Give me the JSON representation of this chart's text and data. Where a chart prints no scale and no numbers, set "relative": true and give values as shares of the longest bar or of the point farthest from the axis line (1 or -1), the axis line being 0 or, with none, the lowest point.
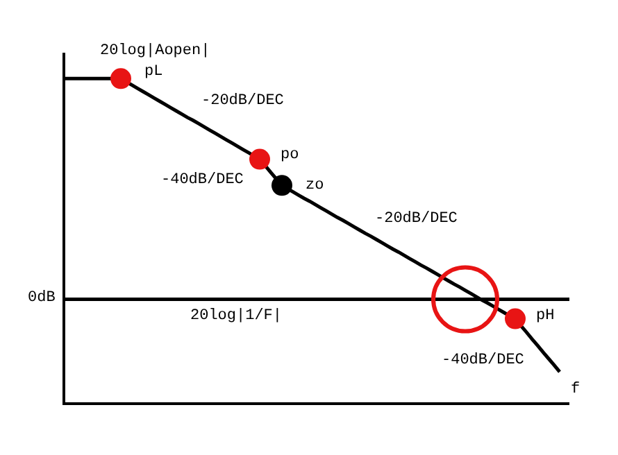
{
  "chart_data": {
    "type": "line",
    "relative": true,
    "xlabel": "f",
    "ylabel": "20log|Aopen|",
    "categories": [
      null,
      null,
      null,
      null,
      null,
      null,
      null,
      null,
      null,
      null,
      null,
      null,
      null,
      null,
      null,
      null,
      null,
      null,
      null,
      null,
      null,
      null,
      null,
      null,
      null,
      null,
      null,
      null,
      null,
      null,
      null,
      null,
      null,
      null,
      null,
      null,
      null,
      null,
      null,
      null,
      null,
      null,
      null,
      null,
      null,
      null,
      null,
      null,
      null,
      null,
      null,
      null,
      null,
      null,
      null,
      null,
      null,
      null,
      null,
      null,
      null,
      null,
      null,
      null,
      null,
      null,
      null,
      null,
      null,
      null,
      null,
      null,
      null,
      null,
      null,
      null,
      null,
      null,
      null,
      null,
      null,
      null,
      null,
      null,
      null,
      null,
      null,
      null,
      null,
      null
    ],
    "series": [
      {
        "color": "#000000",
        "values": [
          1.0,
          1.0,
          1.0,
          1.0,
          1.0,
          1.0,
          1.0,
          1.0,
          1.0,
          1.0,
          1.0,
          0.99,
          0.98,
          0.97,
          0.96,
          0.95,
          0.94,
          0.93,
          0.92,
          0.91,
          0.9,
          0.89,
          0.88,
          0.871,
          0.861,
          0.851,
          0.841,
          0.831,
          0.821,
          0.811,
          0.801,
          0.791,
          0.781,
          0.771,
          0.761,
          0.751,
          0.731,
          0.71,
          0.69,
          0.67,
          0.66,
          0.65,
          0.64,
          0.63,
          0.621,
          0.611,
          0.601,
          0.591,
          0.581,
          0.571,
          0.562,
          0.552,
          0.542,
          0.532,
          0.522,
          0.513,
          0.503,
          0.493,
          0.483,
          0.473,
          0.464,
          0.454,
          0.444,
          0.434,
          0.424,
          0.415,
          0.405,
          0.395,
          0.385,
          0.375,
          0.365,
          0.356,
          0.346,
          0.336,
          0.326,
          0.316,
          0.307,
          0.297,
          0.287,
          0.277,
          0.267,
          0.258,
          0.237,
          0.217,
          0.196,
          0.176,
          0.155,
          0.135,
          0.115,
          0.094
        ],
        "colors": [
          null,
          null,
          null,
          null,
          null,
          null,
          null,
          null,
          null,
          null,
          "#e81414",
          null,
          null,
          null,
          null,
          null,
          null,
          null,
          null,
          null,
          null,
          null,
          null,
          null,
          null,
          null,
          null,
          null,
          null,
          null,
          null,
          null,
          null,
          null,
          null,
          "#e81414",
          null,
          null,
          null,
          "#000000",
          null,
          null,
          null,
          null,
          null,
          null,
          null,
          null,
          null,
          null,
          null,
          null,
          null,
          null,
          null,
          null,
          null,
          null,
          null,
          null,
          null,
          null,
          null,
          null,
          null,
          null,
          null,
          null,
          null,
          null,
          null,
          null,
          null,
          null,
          null,
          null,
          null,
          null,
          null,
          null,
          null,
          "#e81414",
          null,
          null,
          null,
          null,
          null,
          null,
          null,
          null
        ]
      }
    ],
    "ref_lines": [
      {
        "axis": "y",
        "value": 0.318,
        "label": "20log|1/F|",
        "color": "#000000"
      }
    ],
    "annotations": [
      "pL",
      "-20dB/DEC",
      "po",
      "-40dB/DEC",
      "zo",
      "-20dB/DEC",
      "pH",
      "-40dB/DEC",
      "0dB"
    ],
    "tick_labels": false,
    "line_style": "solid"
  }
}
